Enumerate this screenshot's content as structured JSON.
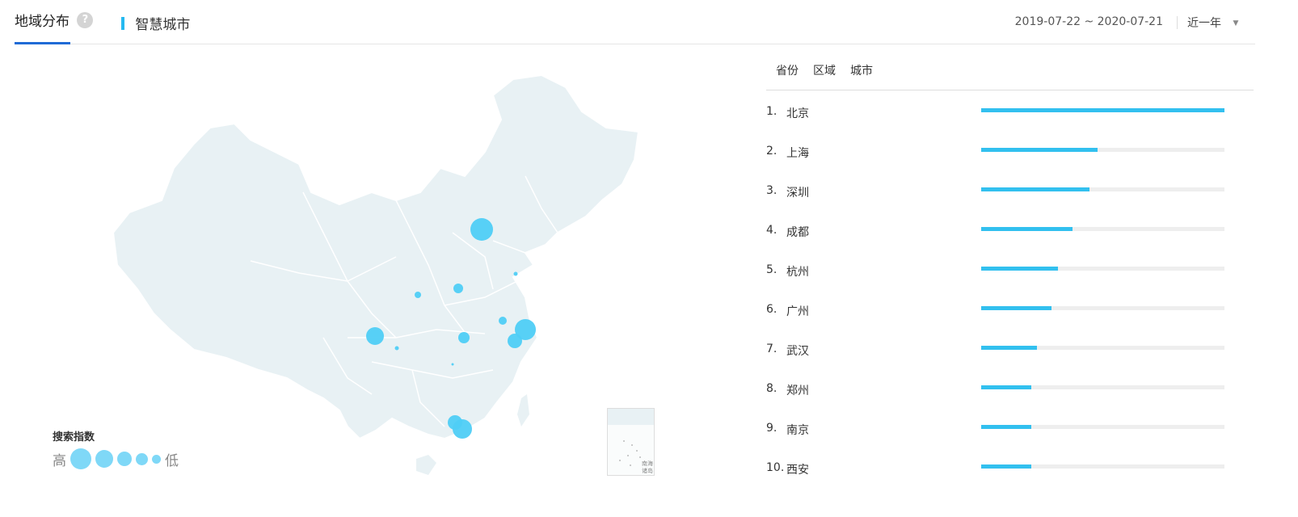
{
  "header": {
    "tab_label": "地域分布",
    "help_icon": "?",
    "keyword": "智慧城市",
    "date_range": "2019-07-22 ~ 2020-07-21",
    "period": "近一年"
  },
  "legend": {
    "title": "搜索指数",
    "high": "高",
    "low": "低"
  },
  "inset_label": "南海诸岛",
  "rank": {
    "tabs": [
      "省份",
      "区域",
      "城市"
    ],
    "items": [
      {
        "num": "1.",
        "name": "北京",
        "value": 1.0
      },
      {
        "num": "2.",
        "name": "上海",
        "value": 0.48
      },
      {
        "num": "3.",
        "name": "深圳",
        "value": 0.445
      },
      {
        "num": "4.",
        "name": "成都",
        "value": 0.375
      },
      {
        "num": "5.",
        "name": "杭州",
        "value": 0.315
      },
      {
        "num": "6.",
        "name": "广州",
        "value": 0.29
      },
      {
        "num": "7.",
        "name": "武汉",
        "value": 0.23
      },
      {
        "num": "8.",
        "name": "郑州",
        "value": 0.205
      },
      {
        "num": "9.",
        "name": "南京",
        "value": 0.205
      },
      {
        "num": "10.",
        "name": "西安",
        "value": 0.205
      }
    ]
  },
  "colors": {
    "accent": "#1f6bd6",
    "bar": "#32c0ef",
    "bubble": "#4fcdf6",
    "land": "#e8f1f4"
  }
}
